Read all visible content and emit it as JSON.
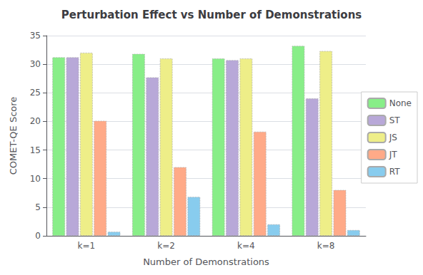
{
  "chart_data": {
    "type": "bar",
    "title": "Perturbation Effect vs Number of Demonstrations",
    "xlabel": "Number of Demonstrations",
    "ylabel": "COMET-QE Score",
    "categories": [
      "k=1",
      "k=2",
      "k=4",
      "k=8"
    ],
    "series": [
      {
        "name": "None",
        "color": "#88ee88",
        "values": [
          31.2,
          31.8,
          31.0,
          33.2
        ]
      },
      {
        "name": "ST",
        "color": "#b8a8d8",
        "values": [
          31.2,
          27.7,
          30.7,
          24.0
        ]
      },
      {
        "name": "JS",
        "color": "#eeee88",
        "values": [
          32.0,
          31.0,
          31.0,
          32.3
        ]
      },
      {
        "name": "JT",
        "color": "#ffaa88",
        "values": [
          20.1,
          12.0,
          18.2,
          8.0
        ]
      },
      {
        "name": "RT",
        "color": "#88ccee",
        "values": [
          0.7,
          6.8,
          2.0,
          1.0
        ]
      }
    ],
    "ylim": [
      0,
      35
    ],
    "yticks": [
      0,
      5,
      10,
      15,
      20,
      25,
      30,
      35
    ],
    "grid": true,
    "legend": "right"
  }
}
